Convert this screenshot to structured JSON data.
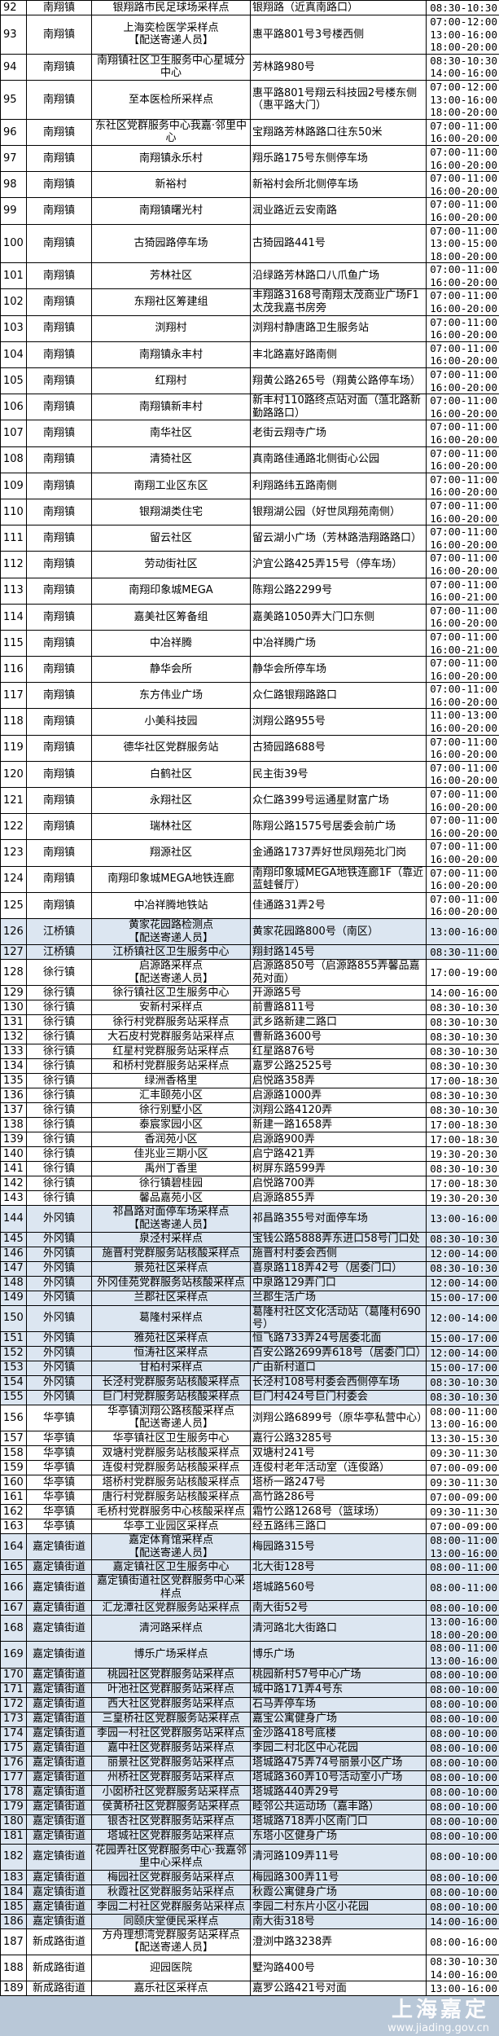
{
  "highlight_towns": [
    "江桥镇",
    "外冈镇",
    "嘉定镇街道"
  ],
  "highlight_color": "#dce6f1",
  "watermark": {
    "logo": "上海嘉定",
    "url": "www.jiading.gov.cn"
  },
  "rows": [
    {
      "no": "92",
      "town": "南翔镇",
      "site": "银翔路市民足球场采样点",
      "address": "银翔路（近真南路口）",
      "times": [
        "08:30-10:30"
      ]
    },
    {
      "no": "93",
      "town": "南翔镇",
      "site": "上海奕检医学采样点",
      "tag": "【配送寄递人员】",
      "address": "惠平路801号3号楼西侧",
      "times": [
        "07:00-12:00",
        "13:00-16:00",
        "18:00-20:00"
      ]
    },
    {
      "no": "94",
      "town": "南翔镇",
      "site": "南翔镇社区卫生服务中心星城分中心",
      "address": "芳林路980号",
      "times": [
        "08:30-10:30",
        "14:00-16:00"
      ]
    },
    {
      "no": "95",
      "town": "南翔镇",
      "site": "至本医检所采样点",
      "address": "惠平路801号翔云科技园2号楼东侧（惠平路大门）",
      "times": [
        "07:00-12:00",
        "13:00-16:00",
        "18:00-20:00"
      ]
    },
    {
      "no": "96",
      "town": "南翔镇",
      "site": "东社区党群服务中心我嘉·邻里中心",
      "address": "宝翔路芳林路路口往东50米",
      "times": [
        "07:00-11:00",
        "16:00-20:00"
      ]
    },
    {
      "no": "97",
      "town": "南翔镇",
      "site": "南翔镇永乐村",
      "address": "翔乐路175号东侧停车场",
      "times": [
        "07:00-11:00",
        "16:00-20:00"
      ]
    },
    {
      "no": "98",
      "town": "南翔镇",
      "site": "新裕村",
      "address": "新裕村会所北侧停车场",
      "times": [
        "07:00-11:00",
        "16:00-20:00"
      ]
    },
    {
      "no": "99",
      "town": "南翔镇",
      "site": "南翔镇曙光村",
      "address": "润业路近云安南路",
      "times": [
        "07:00-11:00",
        "16:00-20:00"
      ]
    },
    {
      "no": "100",
      "town": "南翔镇",
      "site": "古猗园路停车场",
      "address": "古猗园路441号",
      "times": [
        "07:00-11:00",
        "13:00-15:00",
        "18:00-20:00"
      ]
    },
    {
      "no": "101",
      "town": "南翔镇",
      "site": "芳林社区",
      "address": "沿绿路芳林路口八爪鱼广场",
      "times": [
        "07:00-11:00",
        "16:00-20:00"
      ]
    },
    {
      "no": "102",
      "town": "南翔镇",
      "site": "东翔社区筹建组",
      "address": "丰翔路3168号南翔太茂商业广场F1太茂我嘉书房旁",
      "times": [
        "07:00-11:00",
        "16:00-20:00"
      ]
    },
    {
      "no": "103",
      "town": "南翔镇",
      "site": "浏翔村",
      "address": "浏翔村静唐路卫生服务站",
      "times": [
        "07:00-11:00",
        "16:00-20:00"
      ]
    },
    {
      "no": "104",
      "town": "南翔镇",
      "site": "南翔镇永丰村",
      "address": "丰北路嘉好路南侧",
      "times": [
        "07:00-11:00",
        "16:00-20:00"
      ]
    },
    {
      "no": "105",
      "town": "南翔镇",
      "site": "红翔村",
      "address": "翔黄公路265号（翔黄公路停车场）",
      "times": [
        "07:00-11:00",
        "16:00-20:00"
      ]
    },
    {
      "no": "106",
      "town": "南翔镇",
      "site": "南翔镇新丰村",
      "address": "新丰村110路终点站对面（蕰北路新勤路路口）",
      "times": [
        "07:00-11:00",
        "16:00-20:00"
      ]
    },
    {
      "no": "107",
      "town": "南翔镇",
      "site": "南华社区",
      "address": "老街云翔寺广场",
      "times": [
        "07:00-11:00",
        "16:00-20:00"
      ]
    },
    {
      "no": "108",
      "town": "南翔镇",
      "site": "清猗社区",
      "address": "真南路佳通路北侧街心公园",
      "times": [
        "07:00-11:00",
        "16:00-20:00"
      ]
    },
    {
      "no": "109",
      "town": "南翔镇",
      "site": "南翔工业区东区",
      "address": "利翔路纬五路南侧",
      "times": [
        "07:00-11:00",
        "16:00-20:00"
      ]
    },
    {
      "no": "110",
      "town": "南翔镇",
      "site": "银翔湖类住宅",
      "address": "银翔湖公园（好世凤翔苑南侧）",
      "times": [
        "07:00-11:00",
        "16:00-20:00"
      ]
    },
    {
      "no": "111",
      "town": "南翔镇",
      "site": "留云社区",
      "address": "留云湖小广场（芳林路浩翔路路口）",
      "times": [
        "07:00-11:00",
        "16:00-20:00"
      ]
    },
    {
      "no": "112",
      "town": "南翔镇",
      "site": "劳动街社区",
      "address": "沪宜公路425弄15号（停车场）",
      "times": [
        "07:00-11:00",
        "16:00-20:00"
      ]
    },
    {
      "no": "113",
      "town": "南翔镇",
      "site": "南翔印象城MEGA",
      "address": "陈翔公路2299号",
      "times": [
        "07:00-11:00",
        "16:00-21:00"
      ]
    },
    {
      "no": "114",
      "town": "南翔镇",
      "site": "嘉美社区筹备组",
      "address": "嘉美路1050弄大门口东侧",
      "times": [
        "07:00-11:00",
        "16:00-20:00"
      ]
    },
    {
      "no": "115",
      "town": "南翔镇",
      "site": "中冶祥腾",
      "address": "中冶祥腾广场",
      "times": [
        "07:00-11:00",
        "16:00-21:00"
      ]
    },
    {
      "no": "116",
      "town": "南翔镇",
      "site": "静华会所",
      "address": "静华会所停车场",
      "times": [
        "07:00-11:00",
        "16:00-20:00"
      ]
    },
    {
      "no": "117",
      "town": "南翔镇",
      "site": "东方伟业广场",
      "address": "众仁路银翔路路口",
      "times": [
        "07:00-11:00",
        "16:00-20:00"
      ]
    },
    {
      "no": "118",
      "town": "南翔镇",
      "site": "小美科技园",
      "address": "浏翔公路955号",
      "times": [
        "11:00-13:00",
        "16:00-20:00"
      ]
    },
    {
      "no": "119",
      "town": "南翔镇",
      "site": "德华社区党群服务站",
      "address": "古猗园路688号",
      "times": [
        "07:00-11:00",
        "16:00-20:00"
      ]
    },
    {
      "no": "120",
      "town": "南翔镇",
      "site": "白鹤社区",
      "address": "民主街39号",
      "times": [
        "07:00-11:00",
        "16:00-20:00"
      ]
    },
    {
      "no": "121",
      "town": "南翔镇",
      "site": "永翔社区",
      "address": "众仁路399号运通星财富广场",
      "times": [
        "07:00-11:00",
        "16:00-20:00"
      ]
    },
    {
      "no": "122",
      "town": "南翔镇",
      "site": "瑞林社区",
      "address": "陈翔公路1575号居委会前广场",
      "times": [
        "07:00-11:00",
        "16:00-20:00"
      ]
    },
    {
      "no": "123",
      "town": "南翔镇",
      "site": "翔源社区",
      "address": "金通路1737弄好世凤翔苑北门岗",
      "times": [
        "07:00-11:00",
        "16:00-20:00"
      ]
    },
    {
      "no": "124",
      "town": "南翔镇",
      "site": "南翔印象城MEGA地铁连廊",
      "address": "南翔印象城MEGA地铁连廊1F（靠近蓝蛙餐厅）",
      "times": [
        "07:00-11:00",
        "16:00-20:00"
      ]
    },
    {
      "no": "125",
      "town": "南翔镇",
      "site": "中冶祥腾地铁站",
      "address": "佳通路31弄2号",
      "times": [
        "07:00-11:00",
        "16:00-20:00"
      ]
    },
    {
      "no": "126",
      "town": "江桥镇",
      "site": "黄家花园路检测点",
      "tag": "【配送寄递人员】",
      "address": "黄家花园路800号（南区）",
      "times": [
        "13:00-16:00"
      ]
    },
    {
      "no": "127",
      "town": "江桥镇",
      "site": "江桥镇社区卫生服务中心",
      "address": "翔封路145号",
      "times": [
        "08:30-11:00"
      ]
    },
    {
      "no": "128",
      "town": "徐行镇",
      "site": "启源路采样点",
      "tag": "【配送寄递人员】",
      "address": "启源路850号（启源路855弄馨品嘉苑对面）",
      "times": [
        "17:00-19:00"
      ]
    },
    {
      "no": "129",
      "town": "徐行镇",
      "site": "徐行镇社区卫生服务中心",
      "address": "开源路5号",
      "times": [
        "14:00-16:00"
      ]
    },
    {
      "no": "130",
      "town": "徐行镇",
      "site": "安新村采样点",
      "address": "前曹路811号",
      "times": [
        "08:30-10:30"
      ]
    },
    {
      "no": "131",
      "town": "徐行镇",
      "site": "徐行村党群服务站采样点",
      "address": "武乡路新建二路口",
      "times": [
        "08:30-10:30"
      ]
    },
    {
      "no": "132",
      "town": "徐行镇",
      "site": "大石皮村党群服务站采样点",
      "address": "曹新路3600号",
      "times": [
        "08:30-10:30"
      ]
    },
    {
      "no": "133",
      "town": "徐行镇",
      "site": "红星村党群服务站采样点",
      "address": "红星路876号",
      "times": [
        "08:30-10:30"
      ]
    },
    {
      "no": "134",
      "town": "徐行镇",
      "site": "和桥村党群服务站采样点",
      "address": "嘉罗公路2525号",
      "times": [
        "08:30-10:30"
      ]
    },
    {
      "no": "135",
      "town": "徐行镇",
      "site": "绿洲香格里",
      "address": "启悦路358弄",
      "times": [
        "17:00-18:30"
      ]
    },
    {
      "no": "136",
      "town": "徐行镇",
      "site": "汇丰颐苑小区",
      "address": "启源路1000弄",
      "times": [
        "08:30-10:30"
      ]
    },
    {
      "no": "137",
      "town": "徐行镇",
      "site": "徐行别墅小区",
      "address": "浏翔公路4120弄",
      "times": [
        "08:30-10:30"
      ]
    },
    {
      "no": "138",
      "town": "徐行镇",
      "site": "泰宸家园小区",
      "address": "新建一路1658弄",
      "times": [
        "17:00-18:30"
      ]
    },
    {
      "no": "139",
      "town": "徐行镇",
      "site": "香润苑小区",
      "address": "启源路900弄",
      "times": [
        "17:00-18:30"
      ]
    },
    {
      "no": "140",
      "town": "徐行镇",
      "site": "佳兆业三期小区",
      "address": "启宁路421弄",
      "times": [
        "19:30-20:30"
      ]
    },
    {
      "no": "141",
      "town": "徐行镇",
      "site": "禹州丁香里",
      "address": "树屏东路599弄",
      "times": [
        "08:30-10:30"
      ]
    },
    {
      "no": "142",
      "town": "徐行镇",
      "site": "徐行镇碧桂园",
      "address": "启悦路700弄",
      "times": [
        "17:00-18:30"
      ]
    },
    {
      "no": "143",
      "town": "徐行镇",
      "site": "馨品嘉苑小区",
      "address": "启源路855弄",
      "times": [
        "19:30-20:30"
      ]
    },
    {
      "no": "144",
      "town": "外冈镇",
      "site": "祁昌路对面停车场采样点",
      "tag": "【配送寄递人员】",
      "address": "祁昌路355号对面停车场",
      "times": [
        "13:00-16:00"
      ]
    },
    {
      "no": "145",
      "town": "外冈镇",
      "site": "泉泾村采样点",
      "address": "宝钱公路5888弄东进口58号门口处",
      "times": [
        "08:30-10:30"
      ]
    },
    {
      "no": "146",
      "town": "外冈镇",
      "site": "施晋村党群服务站核酸采样点",
      "address": "施晋村村委会西侧",
      "times": [
        "12:00-14:00"
      ]
    },
    {
      "no": "147",
      "town": "外冈镇",
      "site": "景苑社区采样点",
      "address": "喜泉路118弄42号（居委门口）",
      "times": [
        "08:30-10:30"
      ]
    },
    {
      "no": "148",
      "town": "外冈镇",
      "site": "外冈佳苑党群服务站核酸采样点",
      "address": "中泉路129弄门口",
      "times": [
        "12:00-14:00"
      ]
    },
    {
      "no": "149",
      "town": "外冈镇",
      "site": "兰郡社区采样点",
      "address": "兰郡生活广场",
      "times": [
        "15:00-17:00"
      ]
    },
    {
      "no": "150",
      "town": "外冈镇",
      "site": "葛隆村采样点",
      "address": "葛隆村社区文化活动站（葛隆村690号）",
      "times": [
        "12:00-14:00"
      ]
    },
    {
      "no": "151",
      "town": "外冈镇",
      "site": "雅苑社区采样点",
      "address": "恒飞路733弄24号居委北面",
      "times": [
        "15:00-17:00"
      ]
    },
    {
      "no": "152",
      "town": "外冈镇",
      "site": "恒涛社区采样点",
      "address": "百安公路2699弄618号（居委门口）",
      "times": [
        "12:00-14:00"
      ]
    },
    {
      "no": "153",
      "town": "外冈镇",
      "site": "甘柏村采样点",
      "address": "广由新村道口",
      "times": [
        "15:00-17:00"
      ]
    },
    {
      "no": "154",
      "town": "外冈镇",
      "site": "长泾村党群服务站核酸采样点",
      "address": "长泾村108号村委会西侧停车场",
      "times": [
        "08:30-10:30"
      ]
    },
    {
      "no": "155",
      "town": "外冈镇",
      "site": "巨门村党群服务站核酸采样点",
      "address": "巨门村424号巨门村委会",
      "times": [
        "08:30-10:30"
      ]
    },
    {
      "no": "156",
      "town": "华亭镇",
      "site": "华亭镇浏翔公路核酸采样点",
      "tag": "【配送寄递人员】",
      "address": "浏翔公路6899号（原华亭私营中心）",
      "times": [
        "08:00-11:00",
        "13:00-16:00"
      ]
    },
    {
      "no": "157",
      "town": "华亭镇",
      "site": "华亭镇社区卫生服务中心",
      "address": "嘉行公路3285号",
      "times": [
        "13:30-15:30"
      ]
    },
    {
      "no": "158",
      "town": "华亭镇",
      "site": "双塘村党群服务站核酸采样点",
      "address": "双塘村241号",
      "times": [
        "09:30-11:30"
      ]
    },
    {
      "no": "159",
      "town": "华亭镇",
      "site": "连俊村党群服务站核酸采样点",
      "address": "连俊村老年活动室（连俊路）",
      "times": [
        "07:00-09:00"
      ]
    },
    {
      "no": "160",
      "town": "华亭镇",
      "site": "塔桥村党群服务站核酸采样点",
      "address": "塔桥一路247号",
      "times": [
        "09:30-11:30"
      ]
    },
    {
      "no": "161",
      "town": "华亭镇",
      "site": "唐行村党群服务站核酸采样点",
      "address": "高竹路286号",
      "times": [
        "07:00-09:00"
      ]
    },
    {
      "no": "162",
      "town": "华亭镇",
      "site": "毛桥村党群服务中心核酸采样点",
      "address": "霜竹公路1268号（篮球场）",
      "times": [
        "09:30-11:30"
      ]
    },
    {
      "no": "163",
      "town": "华亭镇",
      "site": "华亭工业园区采样点",
      "address": "经五路纬三路口",
      "times": [
        "07:00-09:00"
      ]
    },
    {
      "no": "164",
      "town": "嘉定镇街道",
      "site": "嘉定体育馆采样点",
      "tag": "【配送寄递人员】",
      "address": "梅园路315号",
      "times": [
        "08:00-11:00",
        "13:00-16:00"
      ]
    },
    {
      "no": "165",
      "town": "嘉定镇街道",
      "site": "嘉定镇社区卫生服务中心",
      "address": "北大街128号",
      "times": [
        "08:00-11:00"
      ]
    },
    {
      "no": "166",
      "town": "嘉定镇街道",
      "site": "嘉定镇街道社区党群服务中心采样点",
      "address": "塔城路560号",
      "times": [
        "08:00-11:00"
      ]
    },
    {
      "no": "167",
      "town": "嘉定镇街道",
      "site": "汇龙潭社区党群服务站采样点",
      "address": "南大街52号",
      "times": [
        "08:00-10:00"
      ]
    },
    {
      "no": "168",
      "town": "嘉定镇街道",
      "site": "清河路采样点",
      "address": "清河路北大街路口",
      "times": [
        "13:00-16:00",
        "18:00-20:00"
      ]
    },
    {
      "no": "169",
      "town": "嘉定镇街道",
      "site": "博乐广场采样点",
      "address": "博乐广场",
      "times": [
        "08:00-11:00",
        "13:00-16:00"
      ]
    },
    {
      "no": "170",
      "town": "嘉定镇街道",
      "site": "桃园社区党群服务站采样点",
      "address": "桃园新村57号中心广场",
      "times": [
        "08:00-10:00"
      ]
    },
    {
      "no": "171",
      "town": "嘉定镇街道",
      "site": "叶池社区党群服务站采样点",
      "address": "城中路171弄4号东",
      "times": [
        "08:00-10:00"
      ]
    },
    {
      "no": "172",
      "town": "嘉定镇街道",
      "site": "西大社区党群服务站采样点",
      "address": "石马弄停车场",
      "times": [
        "08:00-10:00"
      ]
    },
    {
      "no": "173",
      "town": "嘉定镇街道",
      "site": "三皇桥社区党群服务站采样点",
      "address": "嘉宝公寓健身广场",
      "times": [
        "08:00-10:00"
      ]
    },
    {
      "no": "174",
      "town": "嘉定镇街道",
      "site": "李园一村社区党群服务站采样点",
      "address": "金沙路418号底楼",
      "times": [
        "08:00-10:00"
      ]
    },
    {
      "no": "175",
      "town": "嘉定镇街道",
      "site": "嘉中社区党群服务站采样点",
      "address": "李园二村北区中心花园",
      "times": [
        "08:00-10:00"
      ]
    },
    {
      "no": "176",
      "town": "嘉定镇街道",
      "site": "丽景社区党群服务站采样点",
      "address": "塔城路475弄74号丽景小区广场",
      "times": [
        "08:00-10:00"
      ]
    },
    {
      "no": "177",
      "town": "嘉定镇街道",
      "site": "州桥社区党群服务站采样点",
      "address": "塔城路360弄10号活动室小广场",
      "times": [
        "08:00-10:00"
      ]
    },
    {
      "no": "178",
      "town": "嘉定镇街道",
      "site": "小囡桥社区党群服务站采样点",
      "address": "塔城路440弄29号",
      "times": [
        "08:00-10:00"
      ]
    },
    {
      "no": "179",
      "town": "嘉定镇街道",
      "site": "侯黄桥社区党群服务站采样点",
      "address": "睦邻公共运动场（嘉丰路）",
      "times": [
        "08:00-10:00"
      ]
    },
    {
      "no": "180",
      "town": "嘉定镇街道",
      "site": "银杏社区党群服务站采样点",
      "address": "塔城路718弄小区南门口",
      "times": [
        "08:00-10:00"
      ]
    },
    {
      "no": "181",
      "town": "嘉定镇街道",
      "site": "塔城社区党群服务站采样点",
      "address": "东塔小区健身广场",
      "times": [
        "08:00-10:00"
      ]
    },
    {
      "no": "182",
      "town": "嘉定镇街道",
      "site": "花园弄社区党群服务中心·我嘉邻里中心采样点",
      "address": "清河路109弄11号",
      "times": [
        "08:00-10:00"
      ]
    },
    {
      "no": "183",
      "town": "嘉定镇街道",
      "site": "梅园社区党群服务站采样点",
      "address": "梅园路300弄11号",
      "times": [
        "08:00-10:00"
      ]
    },
    {
      "no": "184",
      "town": "嘉定镇街道",
      "site": "秋霞社区党群服务站采样点",
      "address": "秋霞公寓健身广场",
      "times": [
        "08:00-10:00"
      ]
    },
    {
      "no": "185",
      "town": "嘉定镇街道",
      "site": "李园二村社区党群服务站采样点",
      "address": "李园二村东片小区小花园",
      "times": [
        "08:00-10:00"
      ]
    },
    {
      "no": "186",
      "town": "嘉定镇街道",
      "site": "同颐庆堂便民采样点",
      "address": "南大街318号",
      "times": [
        "14:00-16:00"
      ]
    },
    {
      "no": "187",
      "town": "新成路街道",
      "site": "方舟理想湾党群服务站采样点",
      "tag": "【配送寄递人员】",
      "address": "澄浏中路3238弄",
      "times": [
        "08:00-16:00"
      ]
    },
    {
      "no": "188",
      "town": "新成路街道",
      "site": "迎园医院",
      "address": "墅沟路400号",
      "times": [
        "08:30-10:30",
        "14:00-16:00"
      ]
    },
    {
      "no": "189",
      "town": "新成路街道",
      "site": "嘉乐社区采样点",
      "address": "嘉罗公路421号对面",
      "times": [
        "13:00-16:00"
      ]
    }
  ]
}
